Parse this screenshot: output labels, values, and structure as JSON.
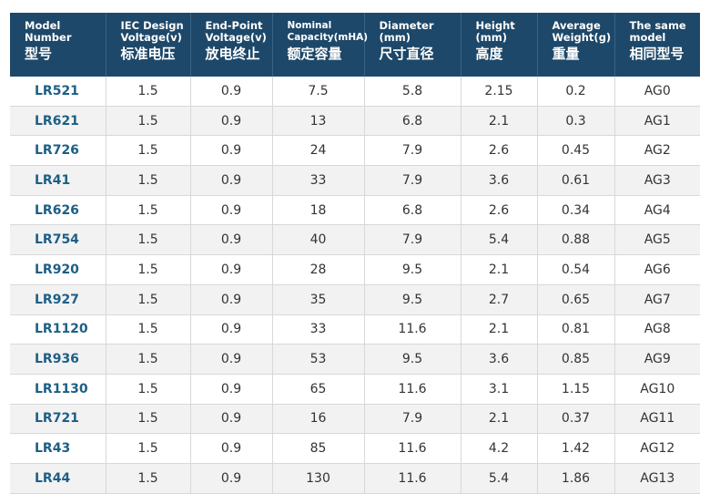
{
  "headers": [
    {
      "en": "Model\nNumber",
      "zh": "型号"
    },
    {
      "en": "IEC Design\nVoltage(v)",
      "zh": "标准电压"
    },
    {
      "en": "End-Point\nVoltage(v)",
      "zh": "放电终止"
    },
    {
      "en": "Nominal\nCapacity(mHA)",
      "zh": "额定容量"
    },
    {
      "en": "Diameter\n(mm)",
      "zh": "尺寸直径"
    },
    {
      "en": "Height\n(mm)",
      "zh": "高度"
    },
    {
      "en": "Average\nWeight(g)",
      "zh": "重量"
    },
    {
      "en": "The same\nmodel",
      "zh": "相同型号"
    }
  ],
  "rows": [
    [
      "LR521",
      "1.5",
      "0.9",
      "7.5",
      "5.8",
      "2.15",
      "0.2",
      "AG0"
    ],
    [
      "LR621",
      "1.5",
      "0.9",
      "13",
      "6.8",
      "2.1",
      "0.3",
      "AG1"
    ],
    [
      "LR726",
      "1.5",
      "0.9",
      "24",
      "7.9",
      "2.6",
      "0.45",
      "AG2"
    ],
    [
      "LR41",
      "1.5",
      "0.9",
      "33",
      "7.9",
      "3.6",
      "0.61",
      "AG3"
    ],
    [
      "LR626",
      "1.5",
      "0.9",
      "18",
      "6.8",
      "2.6",
      "0.34",
      "AG4"
    ],
    [
      "LR754",
      "1.5",
      "0.9",
      "40",
      "7.9",
      "5.4",
      "0.88",
      "AG5"
    ],
    [
      "LR920",
      "1.5",
      "0.9",
      "28",
      "9.5",
      "2.1",
      "0.54",
      "AG6"
    ],
    [
      "LR927",
      "1.5",
      "0.9",
      "35",
      "9.5",
      "2.7",
      "0.65",
      "AG7"
    ],
    [
      "LR1120",
      "1.5",
      "0.9",
      "33",
      "11.6",
      "2.1",
      "0.81",
      "AG8"
    ],
    [
      "LR936",
      "1.5",
      "0.9",
      "53",
      "9.5",
      "3.6",
      "0.85",
      "AG9"
    ],
    [
      "LR1130",
      "1.5",
      "0.9",
      "65",
      "11.6",
      "3.1",
      "1.15",
      "AG10"
    ],
    [
      "LR721",
      "1.5",
      "0.9",
      "16",
      "7.9",
      "2.1",
      "0.37",
      "AG11"
    ],
    [
      "LR43",
      "1.5",
      "0.9",
      "85",
      "11.6",
      "4.2",
      "1.42",
      "AG12"
    ],
    [
      "LR44",
      "1.5",
      "0.9",
      "130",
      "11.6",
      "5.4",
      "1.86",
      "AG13"
    ]
  ]
}
